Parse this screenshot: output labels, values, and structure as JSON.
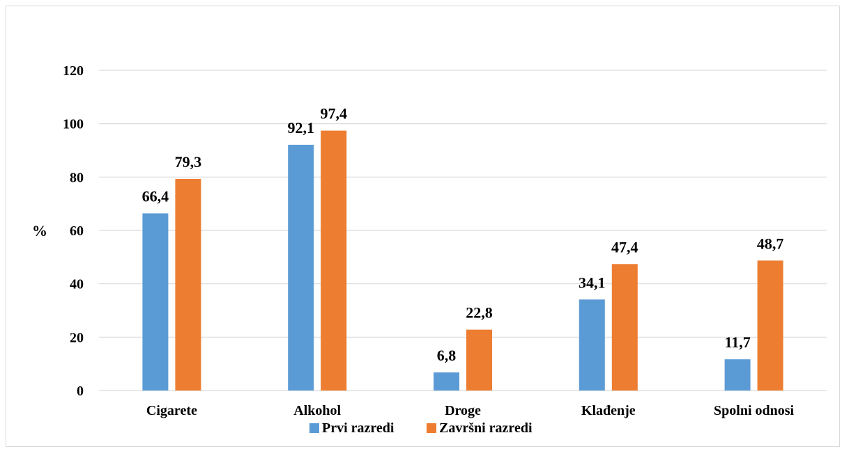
{
  "chart_data": {
    "type": "bar",
    "title": "",
    "xlabel": "",
    "ylabel": "%",
    "ylim": [
      0,
      120
    ],
    "yticks": [
      0,
      20,
      40,
      60,
      80,
      100,
      120
    ],
    "grid": true,
    "legend_position": "bottom",
    "categories": [
      "Cigarete",
      "Alkohol",
      "Droge",
      "Klađenje",
      "Spolni odnosi"
    ],
    "series": [
      {
        "name": "Prvi razredi",
        "color": "#5b9bd5",
        "values": [
          66.4,
          92.1,
          6.8,
          34.1,
          11.7
        ],
        "labels": [
          "66,4",
          "92,1",
          "6,8",
          "34,1",
          "11,7"
        ]
      },
      {
        "name": "Završni razredi",
        "color": "#ed7d31",
        "values": [
          79.3,
          97.4,
          22.8,
          47.4,
          48.7
        ],
        "labels": [
          "79,3",
          "97,4",
          "22,8",
          "47,4",
          "48,7"
        ]
      }
    ]
  }
}
